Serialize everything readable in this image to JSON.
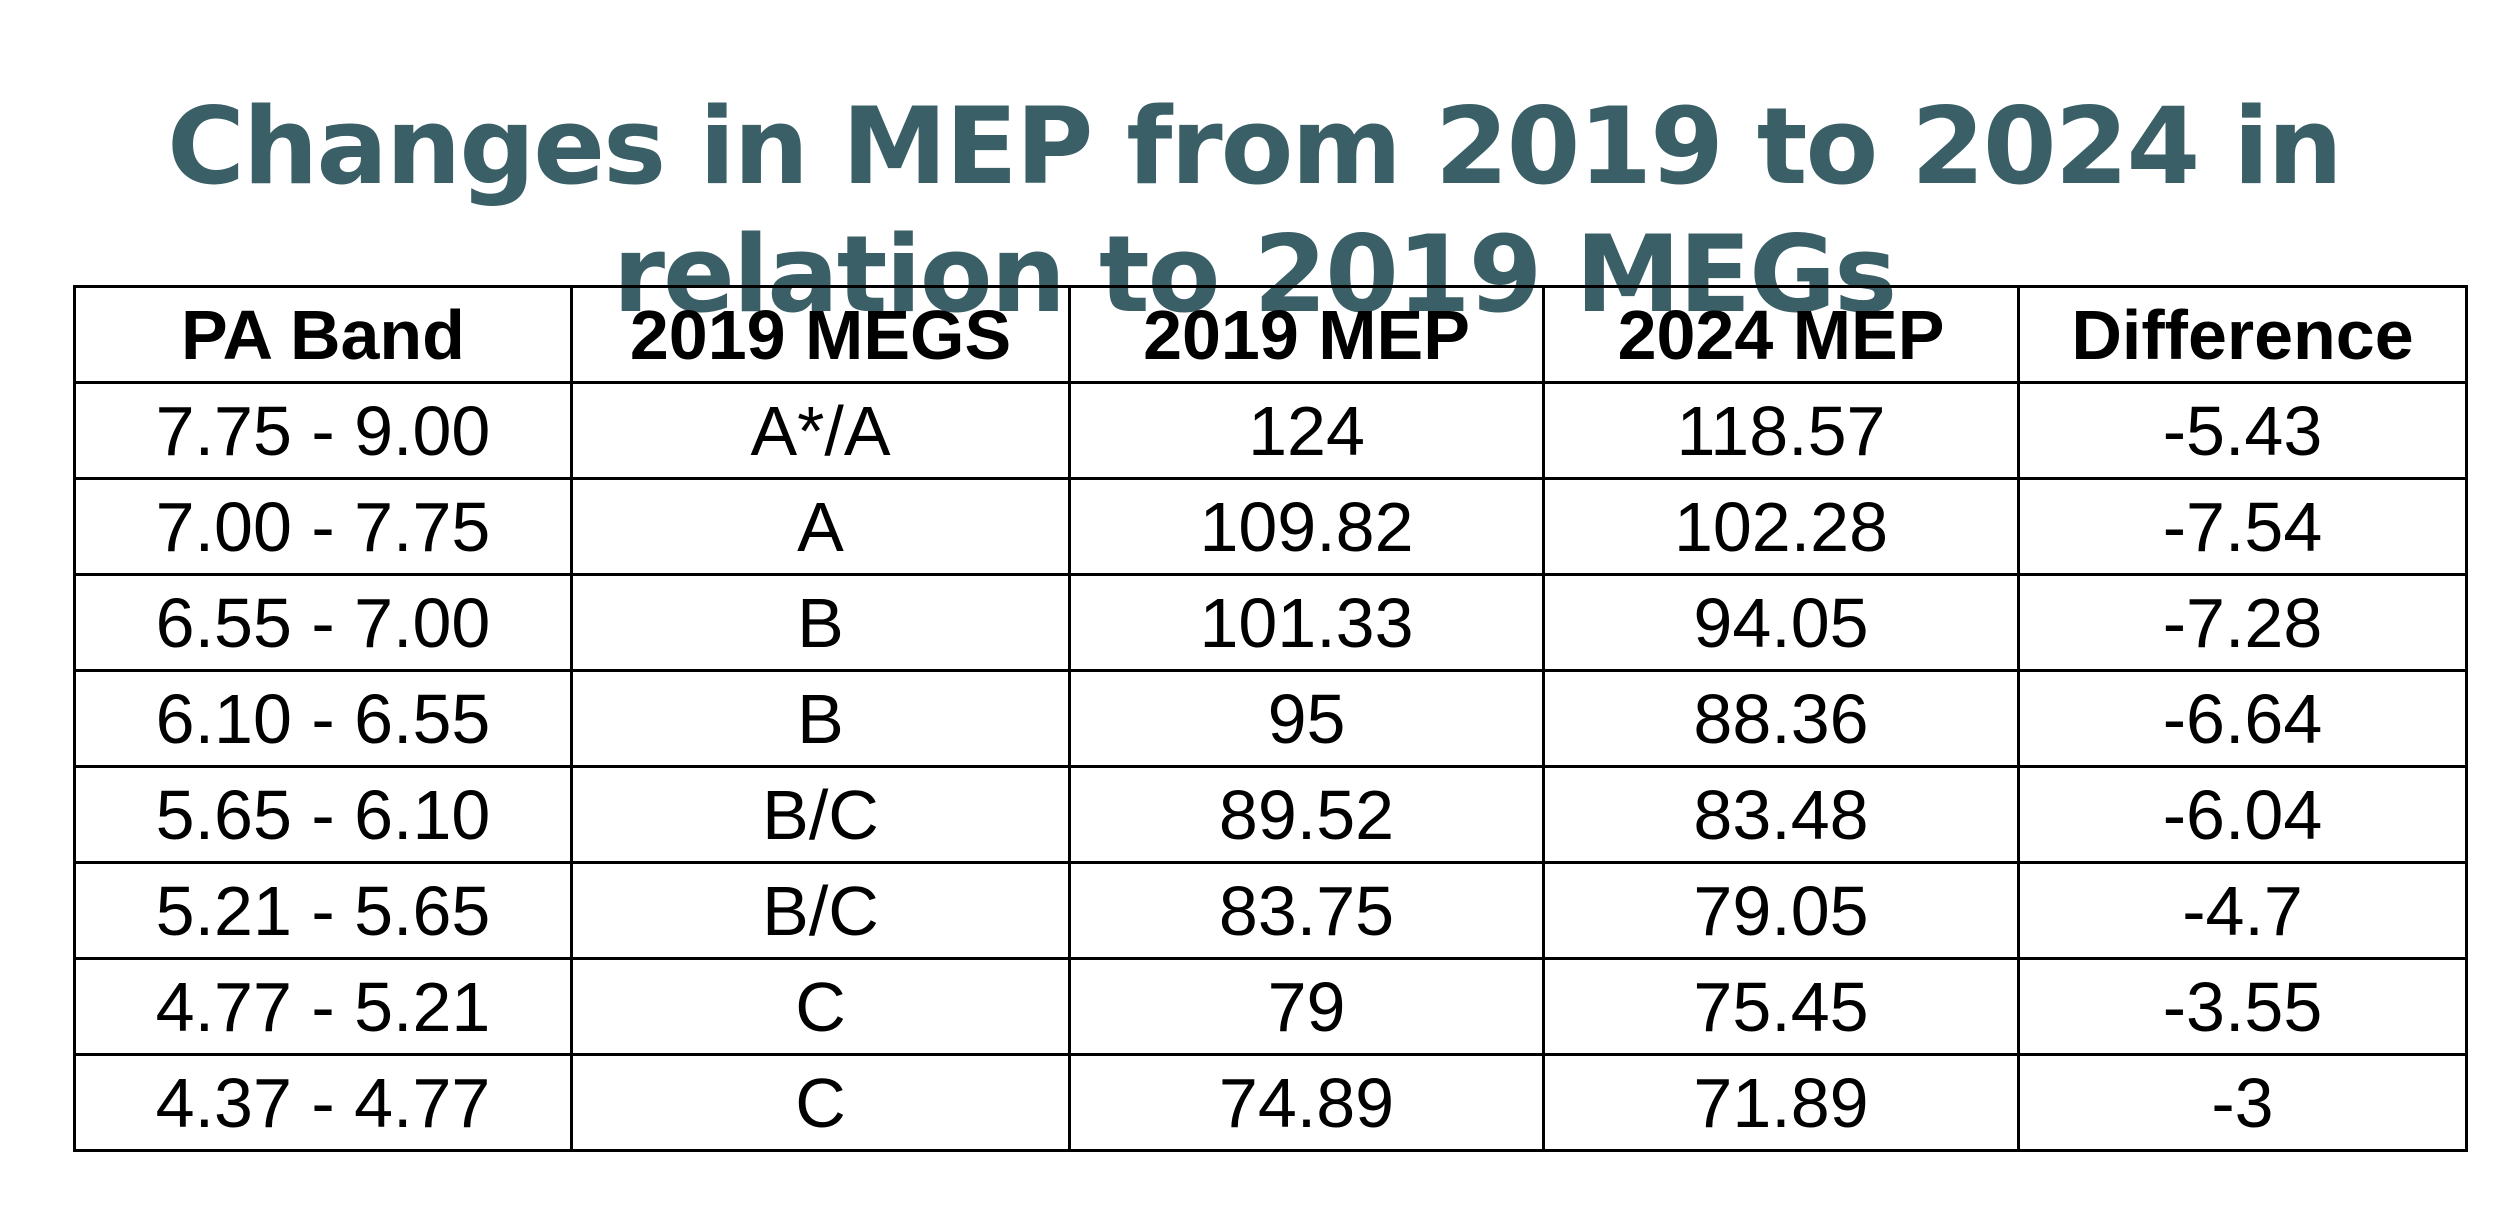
{
  "title": {
    "line1": "Changes in MEP from 2019 to 2024 in",
    "line2": "relation to 2019 MEGs"
  },
  "table": {
    "headers": [
      "PA Band",
      "2019 MEGS",
      "2019 MEP",
      "2024 MEP",
      "Difference"
    ],
    "rows": [
      [
        "7.75 - 9.00",
        "A*/A",
        "124",
        "118.57",
        "-5.43"
      ],
      [
        "7.00 - 7.75",
        "A",
        "109.82",
        "102.28",
        "-7.54"
      ],
      [
        "6.55 - 7.00",
        "B",
        "101.33",
        "94.05",
        "-7.28"
      ],
      [
        "6.10 - 6.55",
        "B",
        "95",
        "88.36",
        "-6.64"
      ],
      [
        "5.65 - 6.10",
        "B/C",
        "89.52",
        "83.48",
        "-6.04"
      ],
      [
        "5.21 - 5.65",
        "B/C",
        "83.75",
        "79.05",
        "-4.7"
      ],
      [
        "4.77 - 5.21",
        "C",
        "79",
        "75.45",
        "-3.55"
      ],
      [
        "4.37 - 4.77",
        "C",
        "74.89",
        "71.89",
        "-3"
      ]
    ]
  },
  "colors": {
    "title": "#3a5f66",
    "text": "#000000",
    "border": "#000000",
    "background": "#ffffff"
  }
}
